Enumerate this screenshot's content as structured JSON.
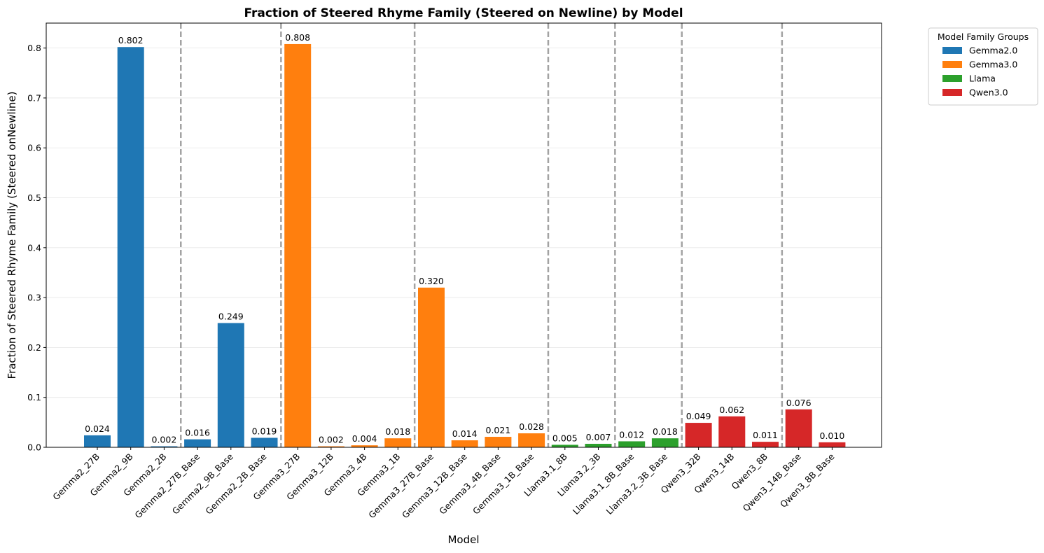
{
  "chart_data": {
    "type": "bar",
    "title": "Fraction of Steered Rhyme Family (Steered on Newline) by Model",
    "xlabel": "Model",
    "ylabel": "Fraction of Steered Rhyme Family (Steered onNewline)",
    "ylim": [
      0,
      0.85
    ],
    "yticks": [
      "0.0",
      "0.1",
      "0.2",
      "0.3",
      "0.4",
      "0.5",
      "0.6",
      "0.7",
      "0.8"
    ],
    "grid": true,
    "categories": [
      "Gemma2_27B",
      "Gemma2_9B",
      "Gemma2_2B",
      "Gemma2_27B_Base",
      "Gemma2_9B_Base",
      "Gemma2_2B_Base",
      "Gemma3_27B",
      "Gemma3_12B",
      "Gemma3_4B",
      "Gemma3_1B",
      "Gemma3_27B_Base",
      "Gemma3_12B_Base",
      "Gemma3_4B_Base",
      "Gemma3_1B_Base",
      "Llama3.1_8B",
      "Llama3.2_3B",
      "Llama3.1_8B_Base",
      "Llama3.2_3B_Base",
      "Qwen3_32B",
      "Qwen3_14B",
      "Qwen3_8B",
      "Qwen3_14B_Base",
      "Qwen3_8B_Base"
    ],
    "values": [
      0.024,
      0.802,
      0.002,
      0.016,
      0.249,
      0.019,
      0.808,
      0.002,
      0.004,
      0.018,
      0.32,
      0.014,
      0.021,
      0.028,
      0.005,
      0.007,
      0.012,
      0.018,
      0.049,
      0.062,
      0.011,
      0.076,
      0.01
    ],
    "value_labels": [
      "0.024",
      "0.802",
      "0.002",
      "0.016",
      "0.249",
      "0.019",
      "0.808",
      "0.002",
      "0.004",
      "0.018",
      "0.320",
      "0.014",
      "0.021",
      "0.028",
      "0.005",
      "0.007",
      "0.012",
      "0.018",
      "0.049",
      "0.062",
      "0.011",
      "0.076",
      "0.010"
    ],
    "bar_groups": [
      "Gemma2.0",
      "Gemma2.0",
      "Gemma2.0",
      "Gemma2.0",
      "Gemma2.0",
      "Gemma2.0",
      "Gemma3.0",
      "Gemma3.0",
      "Gemma3.0",
      "Gemma3.0",
      "Gemma3.0",
      "Gemma3.0",
      "Gemma3.0",
      "Gemma3.0",
      "Llama",
      "Llama",
      "Llama",
      "Llama",
      "Qwen3.0",
      "Qwen3.0",
      "Qwen3.0",
      "Qwen3.0",
      "Qwen3.0"
    ],
    "group_separators_after_index": [
      2,
      5,
      9,
      13,
      15,
      17,
      20
    ],
    "legend": {
      "title": "Model Family Groups",
      "placement": "outside-top-right",
      "entries": [
        {
          "name": "Gemma2.0",
          "color": "#1f77b4"
        },
        {
          "name": "Gemma3.0",
          "color": "#ff7f0e"
        },
        {
          "name": "Llama",
          "color": "#2ca02c"
        },
        {
          "name": "Qwen3.0",
          "color": "#d62728"
        }
      ]
    }
  }
}
